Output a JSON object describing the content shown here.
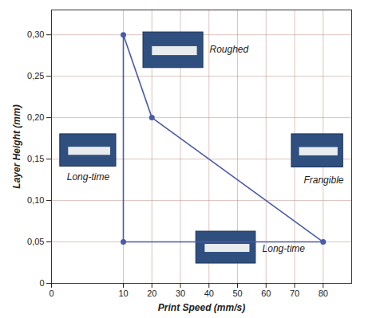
{
  "chart_data": {
    "type": "line",
    "x_label": "Print Speed (mm/s)",
    "y_label": "Layer Height (mm)",
    "x": [
      10,
      20,
      80,
      10,
      10
    ],
    "values": [
      0.3,
      0.2,
      0.05,
      0.05,
      0.3
    ],
    "color": "#4a5aa8",
    "marker": "circle",
    "xlim": [
      0,
      90
    ],
    "xticks": [
      0,
      10,
      20,
      30,
      40,
      50,
      60,
      70,
      80
    ],
    "ylim": [
      0,
      0.33
    ],
    "yticks": [
      0,
      {
        "value": 0.05,
        "label": "0,05"
      },
      {
        "value": 0.1,
        "label": "0,10"
      },
      {
        "value": 0.15,
        "label": "0,15"
      },
      {
        "value": 0.2,
        "label": "0,20"
      },
      {
        "value": 0.25,
        "label": "0,25"
      },
      {
        "value": 0.3,
        "label": "0,30"
      }
    ],
    "grid": true,
    "annotations": [
      "Roughed",
      "Long-time",
      "Frangible",
      "Long-time"
    ]
  }
}
